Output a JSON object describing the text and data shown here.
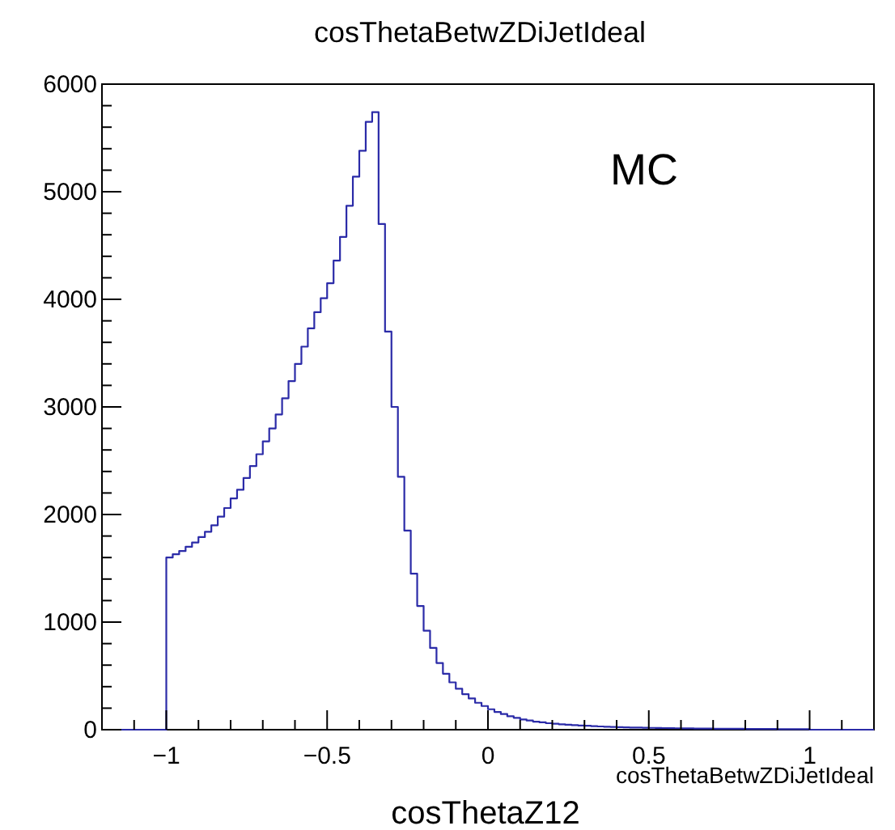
{
  "chart_data": {
    "type": "histogram",
    "title": "cosThetaBetwZDiJetIdeal",
    "xlabel": "cosThetaZ12",
    "annotations": [
      "MC",
      "cosThetaBetwZDiJetIdeal"
    ],
    "color": "#2b2ba8",
    "bins": [
      -1.2,
      -1.18,
      -1.16,
      -1.14,
      -1.12,
      -1.1,
      -1.08,
      -1.06,
      -1.04,
      -1.02,
      -1.0,
      -0.98,
      -0.96,
      -0.94,
      -0.92,
      -0.9,
      -0.88,
      -0.86,
      -0.84,
      -0.82,
      -0.8,
      -0.78,
      -0.76,
      -0.74,
      -0.72,
      -0.7,
      -0.68,
      -0.66,
      -0.64,
      -0.62,
      -0.6,
      -0.58,
      -0.56,
      -0.54,
      -0.52,
      -0.5,
      -0.48,
      -0.46,
      -0.44,
      -0.42,
      -0.4,
      -0.38,
      -0.36,
      -0.34,
      -0.32,
      -0.3,
      -0.28,
      -0.26,
      -0.24,
      -0.22,
      -0.2,
      -0.18,
      -0.16,
      -0.14,
      -0.12,
      -0.1,
      -0.08,
      -0.06,
      -0.04,
      -0.02,
      0.0,
      0.02,
      0.04,
      0.06,
      0.08,
      0.1,
      0.12,
      0.14,
      0.16,
      0.18,
      0.2,
      0.22,
      0.24,
      0.26,
      0.28,
      0.3,
      0.32,
      0.34,
      0.36,
      0.38,
      0.4,
      0.42,
      0.44,
      0.46,
      0.48,
      0.5,
      0.52,
      0.54,
      0.56,
      0.58,
      0.6,
      0.62,
      0.64,
      0.66,
      0.68,
      0.7,
      0.72,
      0.74,
      0.76,
      0.78,
      0.8,
      0.82,
      0.84,
      0.86,
      0.88,
      0.9,
      0.92,
      0.94,
      0.96,
      0.98,
      1.0,
      1.02,
      1.04,
      1.06,
      1.08,
      1.1,
      1.12,
      1.14,
      1.16,
      1.18,
      1.2
    ],
    "values": [
      0,
      0,
      0,
      0,
      0,
      0,
      0,
      0,
      0,
      0,
      1600,
      1630,
      1660,
      1700,
      1740,
      1790,
      1840,
      1900,
      1980,
      2060,
      2150,
      2230,
      2340,
      2450,
      2560,
      2680,
      2800,
      2930,
      3080,
      3240,
      3400,
      3560,
      3730,
      3880,
      4010,
      4150,
      4360,
      4580,
      4870,
      5140,
      5380,
      5650,
      5740,
      4700,
      3700,
      3000,
      2350,
      1850,
      1450,
      1150,
      920,
      760,
      620,
      520,
      440,
      380,
      330,
      290,
      250,
      220,
      190,
      165,
      145,
      125,
      110,
      95,
      85,
      75,
      68,
      60,
      55,
      50,
      46,
      42,
      39,
      36,
      33,
      30,
      28,
      26,
      24,
      22,
      20,
      19,
      18,
      17,
      16,
      15,
      14,
      13,
      12,
      12,
      11,
      10,
      10,
      9,
      9,
      8,
      8,
      8,
      7,
      7,
      6,
      6,
      6,
      5,
      5,
      5,
      4,
      4,
      0,
      0,
      0,
      0,
      0,
      0,
      0,
      0,
      0,
      0
    ],
    "xlim": [
      -1.2,
      1.2
    ],
    "xticks": [
      {
        "value": -1.1,
        "label": null
      },
      {
        "value": -1,
        "label": "−1"
      },
      {
        "value": -0.9,
        "label": null
      },
      {
        "value": -0.8,
        "label": null
      },
      {
        "value": -0.7,
        "label": null
      },
      {
        "value": -0.6,
        "label": null
      },
      {
        "value": -0.5,
        "label": "−0.5"
      },
      {
        "value": -0.4,
        "label": null
      },
      {
        "value": -0.3,
        "label": null
      },
      {
        "value": -0.2,
        "label": null
      },
      {
        "value": -0.1,
        "label": null
      },
      {
        "value": 0,
        "label": "0"
      },
      {
        "value": 0.1,
        "label": null
      },
      {
        "value": 0.2,
        "label": null
      },
      {
        "value": 0.3,
        "label": null
      },
      {
        "value": 0.4,
        "label": null
      },
      {
        "value": 0.5,
        "label": "0.5"
      },
      {
        "value": 0.6,
        "label": null
      },
      {
        "value": 0.7,
        "label": null
      },
      {
        "value": 0.8,
        "label": null
      },
      {
        "value": 0.9,
        "label": null
      },
      {
        "value": 1,
        "label": "1"
      },
      {
        "value": 1.1,
        "label": null
      }
    ],
    "ylim": [
      0,
      6000
    ],
    "yticks": [
      0,
      {
        "value": 200,
        "label": null
      },
      {
        "value": 400,
        "label": null
      },
      {
        "value": 600,
        "label": null
      },
      {
        "value": 800,
        "label": null
      },
      1000,
      {
        "value": 1200,
        "label": null
      },
      {
        "value": 1400,
        "label": null
      },
      {
        "value": 1600,
        "label": null
      },
      {
        "value": 1800,
        "label": null
      },
      2000,
      {
        "value": 2200,
        "label": null
      },
      {
        "value": 2400,
        "label": null
      },
      {
        "value": 2600,
        "label": null
      },
      {
        "value": 2800,
        "label": null
      },
      3000,
      {
        "value": 3200,
        "label": null
      },
      {
        "value": 3400,
        "label": null
      },
      {
        "value": 3600,
        "label": null
      },
      {
        "value": 3800,
        "label": null
      },
      4000,
      {
        "value": 4200,
        "label": null
      },
      {
        "value": 4400,
        "label": null
      },
      {
        "value": 4600,
        "label": null
      },
      {
        "value": 4800,
        "label": null
      },
      5000,
      {
        "value": 5200,
        "label": null
      },
      {
        "value": 5400,
        "label": null
      },
      {
        "value": 5600,
        "label": null
      },
      {
        "value": 5800,
        "label": null
      },
      6000
    ]
  }
}
